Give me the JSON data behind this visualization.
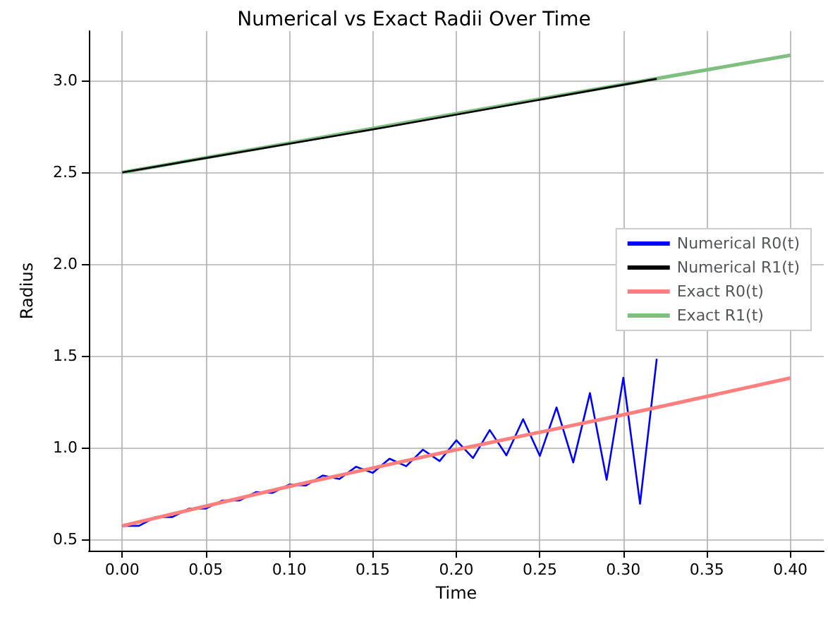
{
  "chart_data": {
    "type": "line",
    "title": "Numerical vs Exact Radii Over Time",
    "xlabel": "Time",
    "ylabel": "Radius",
    "xlim": [
      -0.02,
      0.42
    ],
    "ylim": [
      0.44,
      3.27
    ],
    "xticks": [
      {
        "value": 0,
        "label": "0.00"
      },
      {
        "value": 0.05,
        "label": "0.05"
      },
      {
        "value": 0.1,
        "label": "0.10"
      },
      {
        "value": 0.15,
        "label": "0.15"
      },
      {
        "value": 0.2,
        "label": "0.20"
      },
      {
        "value": 0.25,
        "label": "0.25"
      },
      {
        "value": 0.3,
        "label": "0.30"
      },
      {
        "value": 0.35,
        "label": "0.35"
      },
      {
        "value": 0.4,
        "label": "0.40"
      }
    ],
    "yticks": [
      0.5,
      {
        "value": 1,
        "label": "1.0"
      },
      1.5,
      {
        "value": 2,
        "label": "2.0"
      },
      2.5,
      {
        "value": 3,
        "label": "3.0"
      }
    ],
    "grid": true,
    "legend": "right",
    "marker": "none",
    "series": [
      {
        "name": "Numerical R0(t)",
        "color": "#0000ff",
        "x": [
          0,
          0.01,
          0.02,
          0.03,
          0.04,
          0.05,
          0.06,
          0.07,
          0.08,
          0.09,
          0.1,
          0.11,
          0.12,
          0.13,
          0.14,
          0.15,
          0.16,
          0.17,
          0.18,
          0.19,
          0.2,
          0.21,
          0.22,
          0.23,
          0.24,
          0.25,
          0.26,
          0.27,
          0.28,
          0.29,
          0.3,
          0.31,
          0.32
        ],
        "values": [
          0.575,
          0.575,
          0.623,
          0.623,
          0.669,
          0.669,
          0.713,
          0.713,
          0.759,
          0.755,
          0.8,
          0.795,
          0.849,
          0.83,
          0.897,
          0.864,
          0.941,
          0.9,
          0.99,
          0.928,
          1.041,
          0.944,
          1.097,
          0.959,
          1.156,
          0.956,
          1.22,
          0.92,
          1.298,
          0.826,
          1.382,
          0.695,
          1.485
        ]
      },
      {
        "name": "Numerical R1(t)",
        "color": "#000000",
        "x": [
          0,
          0.16,
          0.32
        ],
        "values": [
          2.5,
          2.75,
          3.01
        ]
      },
      {
        "name": "Exact R0(t)",
        "color": "#ff7f7f",
        "x": [
          0,
          0.1,
          0.2,
          0.3,
          0.4
        ],
        "values": [
          0.575,
          0.79,
          0.99,
          1.18,
          1.38
        ]
      },
      {
        "name": "Exact R1(t)",
        "color": "#7fbf7f",
        "x": [
          0,
          0.1,
          0.2,
          0.3,
          0.4
        ],
        "values": [
          2.5,
          2.66,
          2.82,
          2.98,
          3.138
        ]
      }
    ]
  }
}
